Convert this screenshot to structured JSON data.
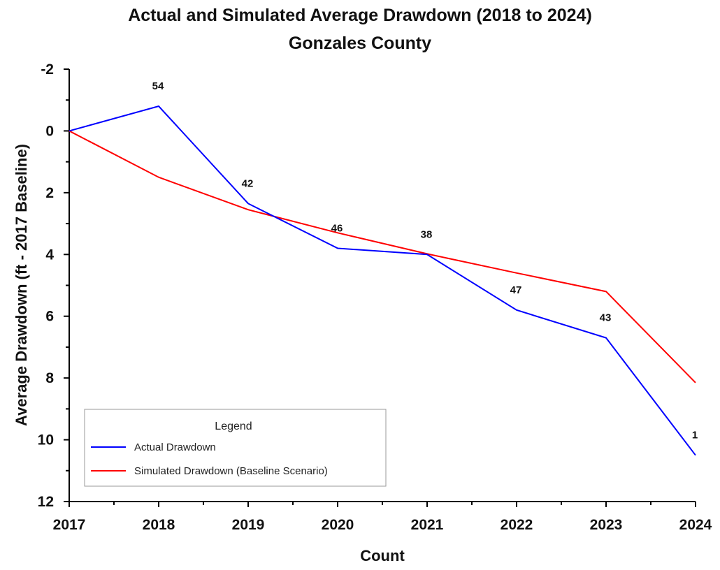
{
  "chart_data": {
    "type": "line",
    "title": "Actual and Simulated Average Drawdown (2018 to 2024)",
    "subtitle": "Gonzales County",
    "xlabel": "Count",
    "ylabel": "Average Drawdown (ft - 2017 Baseline)",
    "x": [
      2017,
      2018,
      2019,
      2020,
      2021,
      2022,
      2023,
      2024
    ],
    "x_tick_labels": [
      "2017",
      "2018",
      "2019",
      "2020",
      "2021",
      "2022",
      "2023",
      "2024"
    ],
    "xlim": [
      2017,
      2024
    ],
    "ylim": [
      -2,
      12
    ],
    "y_inverted": true,
    "y_ticks": [
      -2,
      0,
      2,
      4,
      6,
      8,
      10,
      12
    ],
    "y_tick_labels": [
      "-2",
      "0",
      "2",
      "4",
      "6",
      "8",
      "10",
      "12"
    ],
    "grid": false,
    "series": [
      {
        "name": "Actual Drawdown",
        "color": "#0000ff",
        "values": [
          0,
          -0.8,
          2.35,
          3.8,
          4.0,
          5.8,
          6.7,
          10.5
        ]
      },
      {
        "name": "Simulated Drawdown (Baseline Scenario)",
        "color": "#ff0000",
        "values": [
          0,
          1.5,
          2.55,
          3.3,
          3.98,
          4.6,
          5.2,
          8.15
        ]
      }
    ],
    "annotations": [
      {
        "x": 2018,
        "y": -0.8,
        "text": "54"
      },
      {
        "x": 2019,
        "y": 2.35,
        "text": "42"
      },
      {
        "x": 2020,
        "y": 3.8,
        "text": "46"
      },
      {
        "x": 2021,
        "y": 4.0,
        "text": "38"
      },
      {
        "x": 2022,
        "y": 5.8,
        "text": "47"
      },
      {
        "x": 2023,
        "y": 6.7,
        "text": "43"
      },
      {
        "x": 2024,
        "y": 10.5,
        "text": "1"
      }
    ],
    "legend": {
      "title": "Legend",
      "placement": "bottom-left"
    }
  }
}
